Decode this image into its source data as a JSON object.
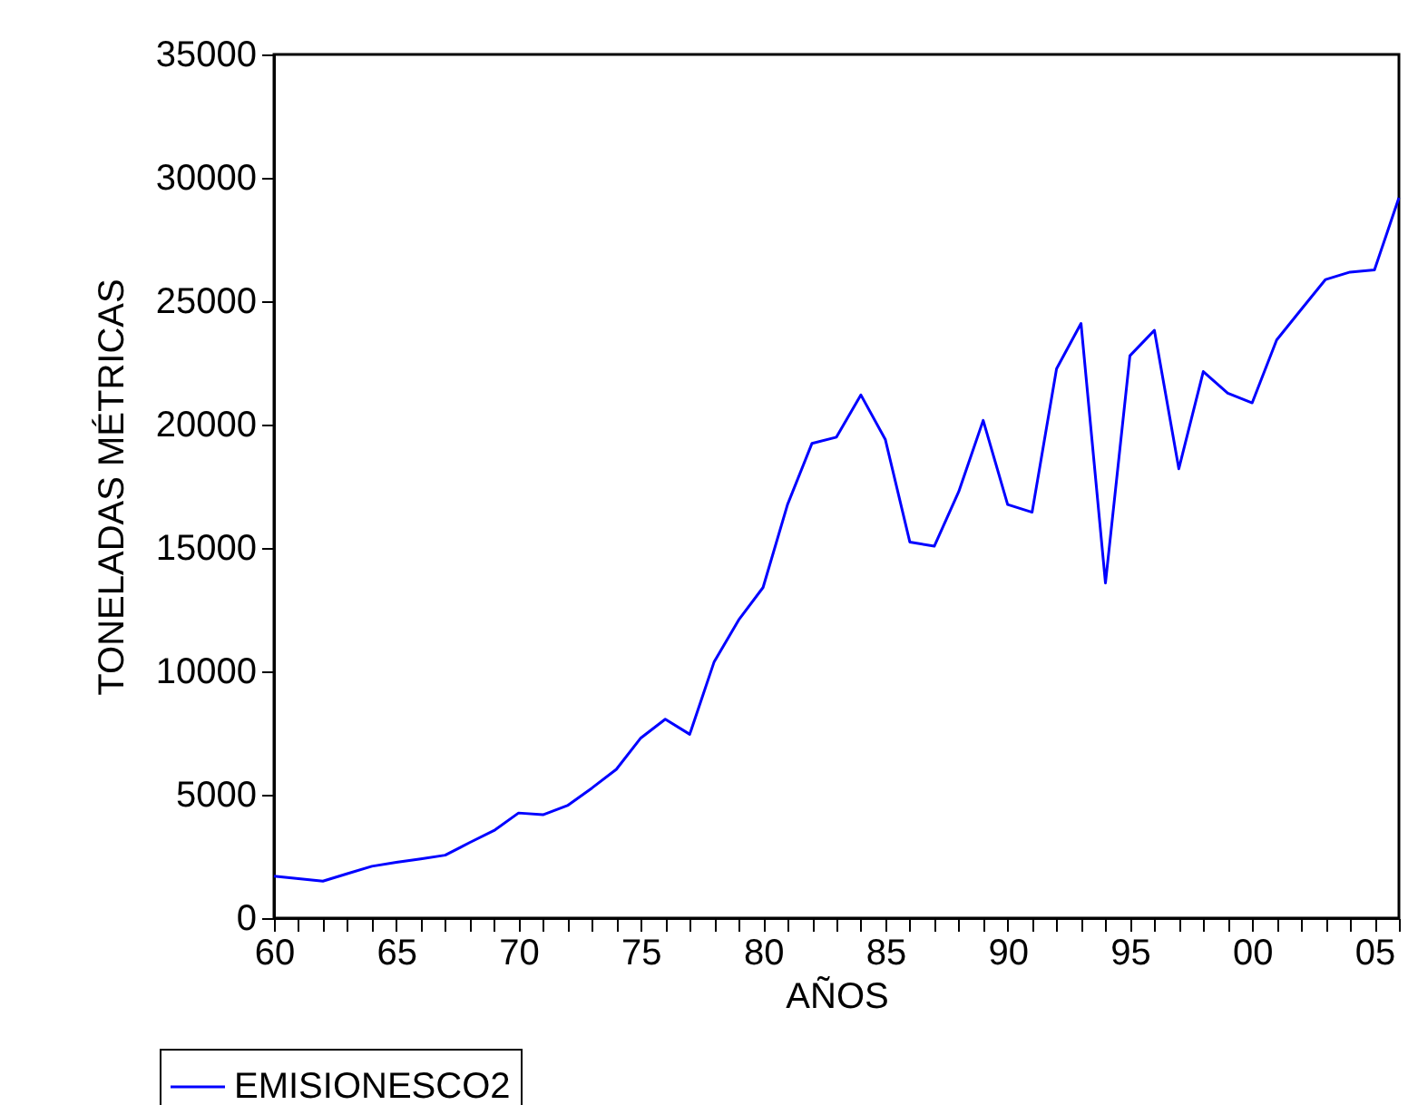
{
  "chart_data": {
    "type": "line",
    "xlabel": "AÑOS",
    "ylabel": "TONELADAS MÉTRICAS",
    "x": [
      1960,
      1961,
      1962,
      1963,
      1964,
      1965,
      1966,
      1967,
      1968,
      1969,
      1970,
      1971,
      1972,
      1973,
      1974,
      1975,
      1976,
      1977,
      1978,
      1979,
      1980,
      1981,
      1982,
      1983,
      1984,
      1985,
      1986,
      1987,
      1988,
      1989,
      1990,
      1991,
      1992,
      1993,
      1994,
      1995,
      1996,
      1997,
      1998,
      1999,
      2000,
      2001,
      2002,
      2003,
      2004,
      2005,
      2006
    ],
    "series": [
      {
        "name": "EMISIONESCO2",
        "color": "#0000ff",
        "values": [
          1700,
          1600,
          1500,
          1800,
          2100,
          2260,
          2400,
          2550,
          3060,
          3550,
          4260,
          4190,
          4560,
          5270,
          6030,
          7300,
          8060,
          7450,
          10390,
          12080,
          13400,
          16760,
          19240,
          19490,
          21200,
          19390,
          15240,
          15070,
          17280,
          20170,
          16760,
          16450,
          22260,
          24100,
          13580,
          22790,
          23820,
          18210,
          22150,
          21270,
          20880,
          23430,
          24660,
          25880,
          26180,
          26270,
          29190
        ]
      }
    ],
    "xlim": [
      1960,
      2006
    ],
    "ylim": [
      0,
      35000
    ],
    "xticks": [
      {
        "value": 1960,
        "label": "60"
      },
      {
        "value": 1961,
        "label": null
      },
      {
        "value": 1962,
        "label": null
      },
      {
        "value": 1963,
        "label": null
      },
      {
        "value": 1964,
        "label": null
      },
      {
        "value": 1965,
        "label": "65"
      },
      {
        "value": 1966,
        "label": null
      },
      {
        "value": 1967,
        "label": null
      },
      {
        "value": 1968,
        "label": null
      },
      {
        "value": 1969,
        "label": null
      },
      {
        "value": 1970,
        "label": "70"
      },
      {
        "value": 1971,
        "label": null
      },
      {
        "value": 1972,
        "label": null
      },
      {
        "value": 1973,
        "label": null
      },
      {
        "value": 1974,
        "label": null
      },
      {
        "value": 1975,
        "label": "75"
      },
      {
        "value": 1976,
        "label": null
      },
      {
        "value": 1977,
        "label": null
      },
      {
        "value": 1978,
        "label": null
      },
      {
        "value": 1979,
        "label": null
      },
      {
        "value": 1980,
        "label": "80"
      },
      {
        "value": 1981,
        "label": null
      },
      {
        "value": 1982,
        "label": null
      },
      {
        "value": 1983,
        "label": null
      },
      {
        "value": 1984,
        "label": null
      },
      {
        "value": 1985,
        "label": "85"
      },
      {
        "value": 1986,
        "label": null
      },
      {
        "value": 1987,
        "label": null
      },
      {
        "value": 1988,
        "label": null
      },
      {
        "value": 1989,
        "label": null
      },
      {
        "value": 1990,
        "label": "90"
      },
      {
        "value": 1991,
        "label": null
      },
      {
        "value": 1992,
        "label": null
      },
      {
        "value": 1993,
        "label": null
      },
      {
        "value": 1994,
        "label": null
      },
      {
        "value": 1995,
        "label": "95"
      },
      {
        "value": 1996,
        "label": null
      },
      {
        "value": 1997,
        "label": null
      },
      {
        "value": 1998,
        "label": null
      },
      {
        "value": 1999,
        "label": null
      },
      {
        "value": 2000,
        "label": "00"
      },
      {
        "value": 2001,
        "label": null
      },
      {
        "value": 2002,
        "label": null
      },
      {
        "value": 2003,
        "label": null
      },
      {
        "value": 2004,
        "label": null
      },
      {
        "value": 2005,
        "label": "05"
      },
      {
        "value": 2006,
        "label": null
      }
    ],
    "yticks": [
      0,
      5000,
      10000,
      15000,
      20000,
      25000,
      30000,
      35000
    ],
    "legend": "bottom"
  }
}
